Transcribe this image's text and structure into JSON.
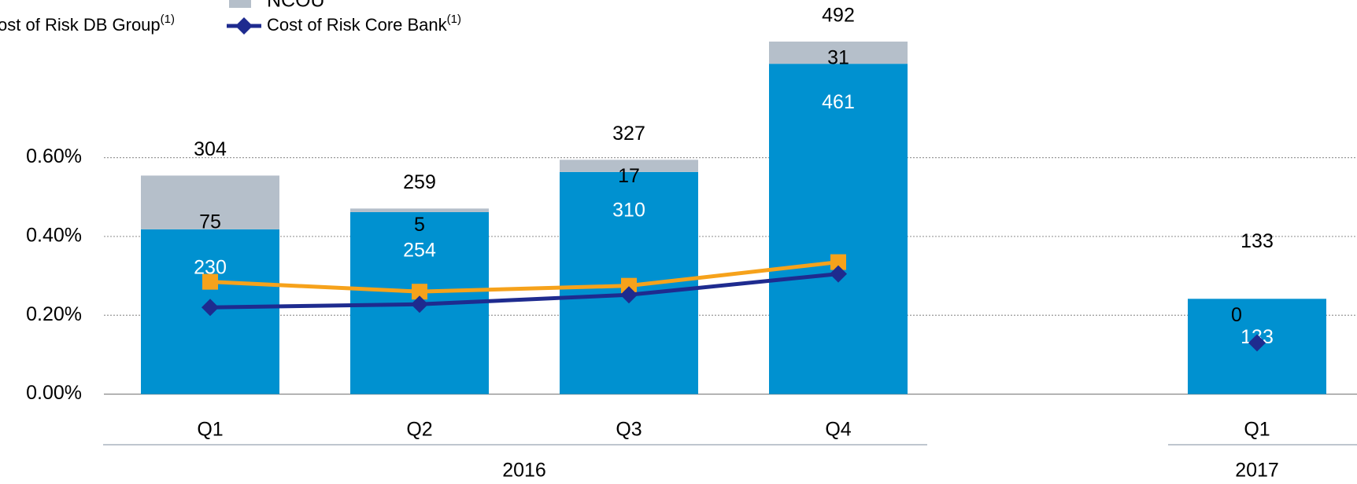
{
  "chart_data": {
    "type": "bar",
    "categories": [
      "Q1",
      "Q2",
      "Q3",
      "Q4",
      null,
      "Q1"
    ],
    "groups": [
      "2016",
      "2016",
      "2016",
      "2016",
      null,
      "2017"
    ],
    "series": [
      {
        "name": "Core Bank",
        "color": "#0091d0",
        "axis": "y2",
        "values": [
          230,
          254,
          310,
          461,
          null,
          133
        ]
      },
      {
        "name": "NCOU",
        "color": "#b5bfca",
        "axis": "y2",
        "values": [
          75,
          5,
          17,
          31,
          null,
          0
        ]
      },
      {
        "name": "Cost of Risk DB Group",
        "type": "line",
        "marker": "square",
        "color": "#f6a21b",
        "values": [
          0.285,
          0.26,
          0.275,
          0.335,
          null,
          null
        ]
      },
      {
        "name": "Cost of Risk Core Bank",
        "type": "line",
        "marker": "diamond",
        "color": "#1e2b8f",
        "values": [
          0.22,
          0.228,
          0.252,
          0.305,
          null,
          0.13
        ]
      }
    ],
    "totals": [
      304,
      259,
      327,
      492,
      null,
      133
    ],
    "footnote_marker": "(1)",
    "ylim": [
      0,
      1.0
    ],
    "yticks": [
      {
        "value": 0,
        "label": "0.00%"
      },
      {
        "value": 0.2,
        "label": "0.20%"
      },
      {
        "value": 0.4,
        "label": "0.40%"
      },
      {
        "value": 0.6,
        "label": "0.60%"
      }
    ],
    "y2lim": [
      0,
      550
    ],
    "grid": true
  }
}
